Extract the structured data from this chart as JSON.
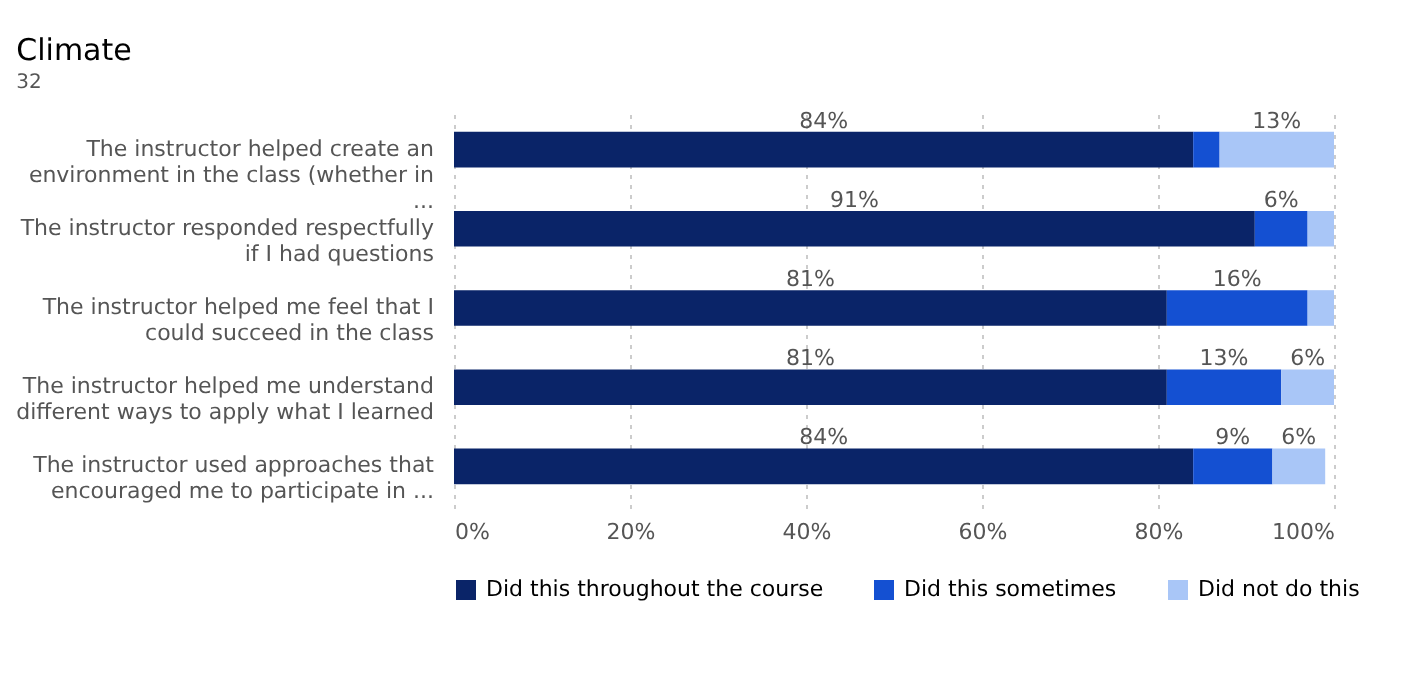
{
  "chart_data": {
    "type": "bar",
    "orientation": "horizontal",
    "stacked": true,
    "title": "Climate",
    "subtitle": "32",
    "categories": [
      "The instructor helped create an environment in the class (whether in ...",
      "The instructor responded respectfully if I had questions",
      "The instructor helped me feel that I could succeed in the class",
      "The instructor helped me understand different ways to apply what I learned",
      "The instructor used approaches that encouraged me to participate in ..."
    ],
    "series": [
      {
        "name": "Did this throughout the course",
        "color": "#0a2468",
        "values": [
          84,
          91,
          81,
          81,
          84
        ],
        "value_labels": [
          "84%",
          "91%",
          "81%",
          "81%",
          "84%"
        ]
      },
      {
        "name": "Did this sometimes",
        "color": "#1450d2",
        "values": [
          3,
          6,
          16,
          13,
          9
        ],
        "value_labels": [
          null,
          "6%",
          "16%",
          "13%",
          "9%"
        ]
      },
      {
        "name": "Did not do this",
        "color": "#a9c6f7",
        "values": [
          13,
          3,
          3,
          6,
          6
        ],
        "value_labels": [
          "13%",
          null,
          null,
          "6%",
          "6%"
        ]
      }
    ],
    "xlim": [
      0,
      100
    ],
    "xticks": [
      {
        "value": 0,
        "label": "0%"
      },
      {
        "value": 20,
        "label": "20%"
      },
      {
        "value": 40,
        "label": "40%"
      },
      {
        "value": 60,
        "label": "60%"
      },
      {
        "value": 80,
        "label": "80%"
      },
      {
        "value": 100,
        "label": "100%"
      }
    ],
    "grid": "x",
    "legend": "bottom"
  }
}
